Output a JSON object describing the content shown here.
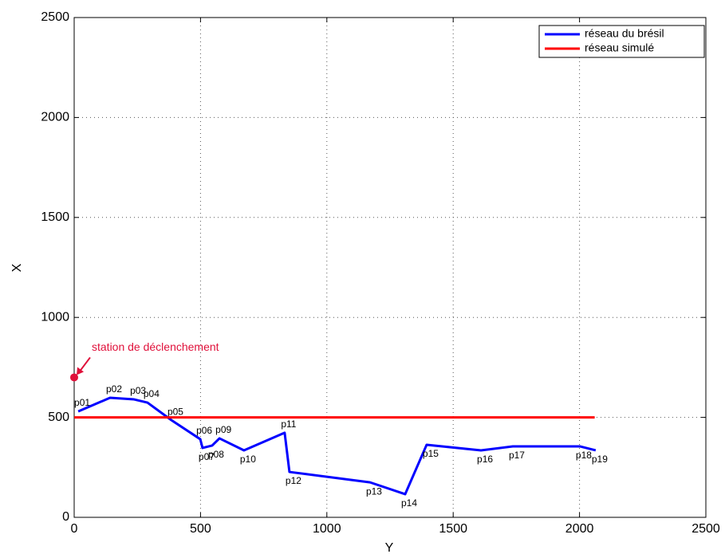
{
  "chart_data": {
    "type": "line",
    "xlabel": "Y",
    "ylabel": "X",
    "xlim": [
      0,
      2500
    ],
    "ylim": [
      0,
      2500
    ],
    "xticks": [
      0,
      500,
      1000,
      1500,
      2000,
      2500
    ],
    "yticks": [
      0,
      500,
      1000,
      1500,
      2000,
      2500
    ],
    "grid": true,
    "legend": "upper right",
    "series": [
      {
        "name": "réseau du brésil",
        "color": "#0000ff",
        "x": [
          16,
          142,
          237,
          290,
          385,
          499,
          508,
          546,
          575,
          672,
          833,
          852,
          1171,
          1310,
          1395,
          1610,
          1736,
          2001,
          2064
        ],
        "values": [
          530,
          598,
          590,
          574,
          486,
          391,
          347,
          359,
          395,
          335,
          423,
          227,
          175,
          116,
          363,
          335,
          355,
          355,
          335
        ],
        "point_labels": [
          "p01",
          "p02",
          "p03",
          "p04",
          "p05",
          "p06",
          "p07",
          "p08",
          "p09",
          "p10",
          "p11",
          "p12",
          "p13",
          "p14",
          "p15",
          "p16",
          "p17",
          "p18",
          "p19"
        ]
      },
      {
        "name": "réseau simulé",
        "color": "#ff0000",
        "x": [
          0,
          2060
        ],
        "values": [
          500,
          500
        ]
      }
    ],
    "annotations": [
      {
        "text": "station de déclenchement",
        "x": 0,
        "y": 700,
        "color": "#e0103a"
      }
    ]
  }
}
